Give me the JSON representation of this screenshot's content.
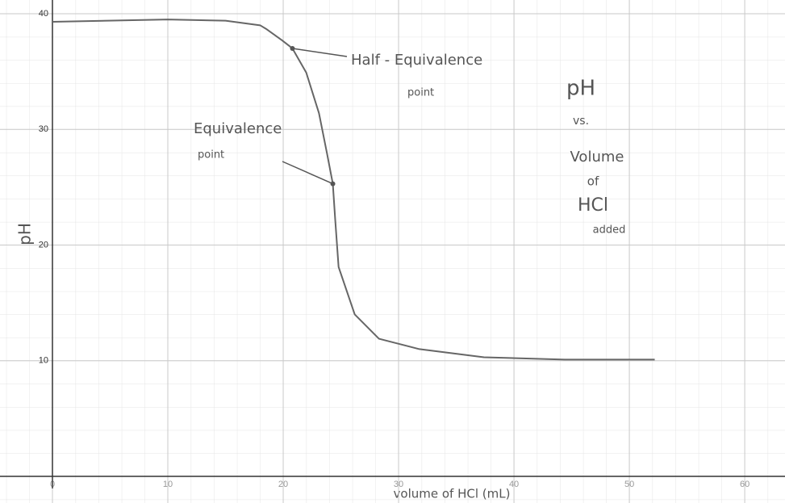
{
  "chart_data": {
    "type": "line",
    "title": [
      "pH",
      "vs.",
      "Volume",
      "of",
      "HCl",
      "added"
    ],
    "x_label": "volume of HCl (mL)",
    "y_label": "pH",
    "x": [
      0,
      10,
      15,
      18,
      18.5,
      19.9,
      20.8,
      22,
      23.1,
      23.8,
      24.3,
      24.5,
      24.8,
      26.2,
      28.3,
      31.8,
      37.4,
      44.4,
      52.2
    ],
    "values": [
      39.3,
      39.5,
      39.4,
      39,
      38.7,
      37.7,
      37,
      34.9,
      31.4,
      27.9,
      25.3,
      22.3,
      18.1,
      14,
      11.9,
      11,
      10.3,
      10.1,
      10.1
    ],
    "color": "#666666",
    "xlim": [
      0,
      63
    ],
    "ylim": [
      0,
      40
    ],
    "xticks": [
      0,
      10,
      20,
      30,
      40,
      50,
      60
    ],
    "yticks": [
      0,
      10,
      20,
      30,
      40
    ],
    "grid": true,
    "annotations": [
      {
        "text": [
          "Half - Equivalence",
          "point"
        ],
        "x": 20.8,
        "y": 37
      },
      {
        "text": [
          "Equivalence",
          "point"
        ],
        "x": 24.3,
        "y": 25.3
      }
    ]
  }
}
